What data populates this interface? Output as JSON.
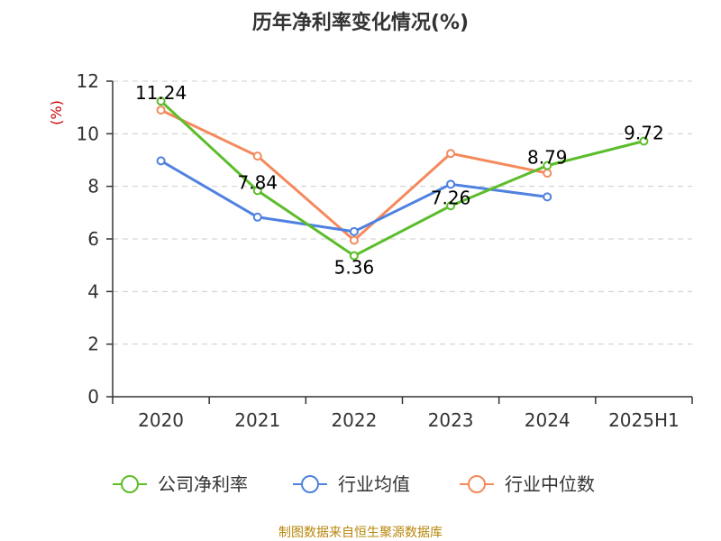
{
  "chart_data": {
    "type": "line",
    "title": "历年净利率变化情况(%)",
    "ylabel": "(%)",
    "xlabel": "",
    "categories": [
      "2020",
      "2021",
      "2022",
      "2023",
      "2024",
      "2025H1"
    ],
    "ylim": [
      0,
      12
    ],
    "yticks": [
      0,
      2,
      4,
      6,
      8,
      10,
      12
    ],
    "grid": "horizontal dashed",
    "legend_position": "bottom",
    "series": [
      {
        "name": "公司净利率",
        "color": "#5cbd2a",
        "values": [
          11.24,
          7.84,
          5.36,
          7.26,
          8.79,
          9.72
        ],
        "labels": [
          "11.24",
          "7.84",
          "5.36",
          "7.26",
          "8.79",
          "9.72"
        ]
      },
      {
        "name": "行业均值",
        "color": "#4f81e0",
        "values": [
          8.97,
          6.83,
          6.28,
          8.08,
          7.6,
          null
        ]
      },
      {
        "name": "行业中位数",
        "color": "#f48a5c",
        "values": [
          10.9,
          9.15,
          5.95,
          9.25,
          8.5,
          null
        ]
      }
    ]
  },
  "source_text": "制图数据来自恒生聚源数据库"
}
